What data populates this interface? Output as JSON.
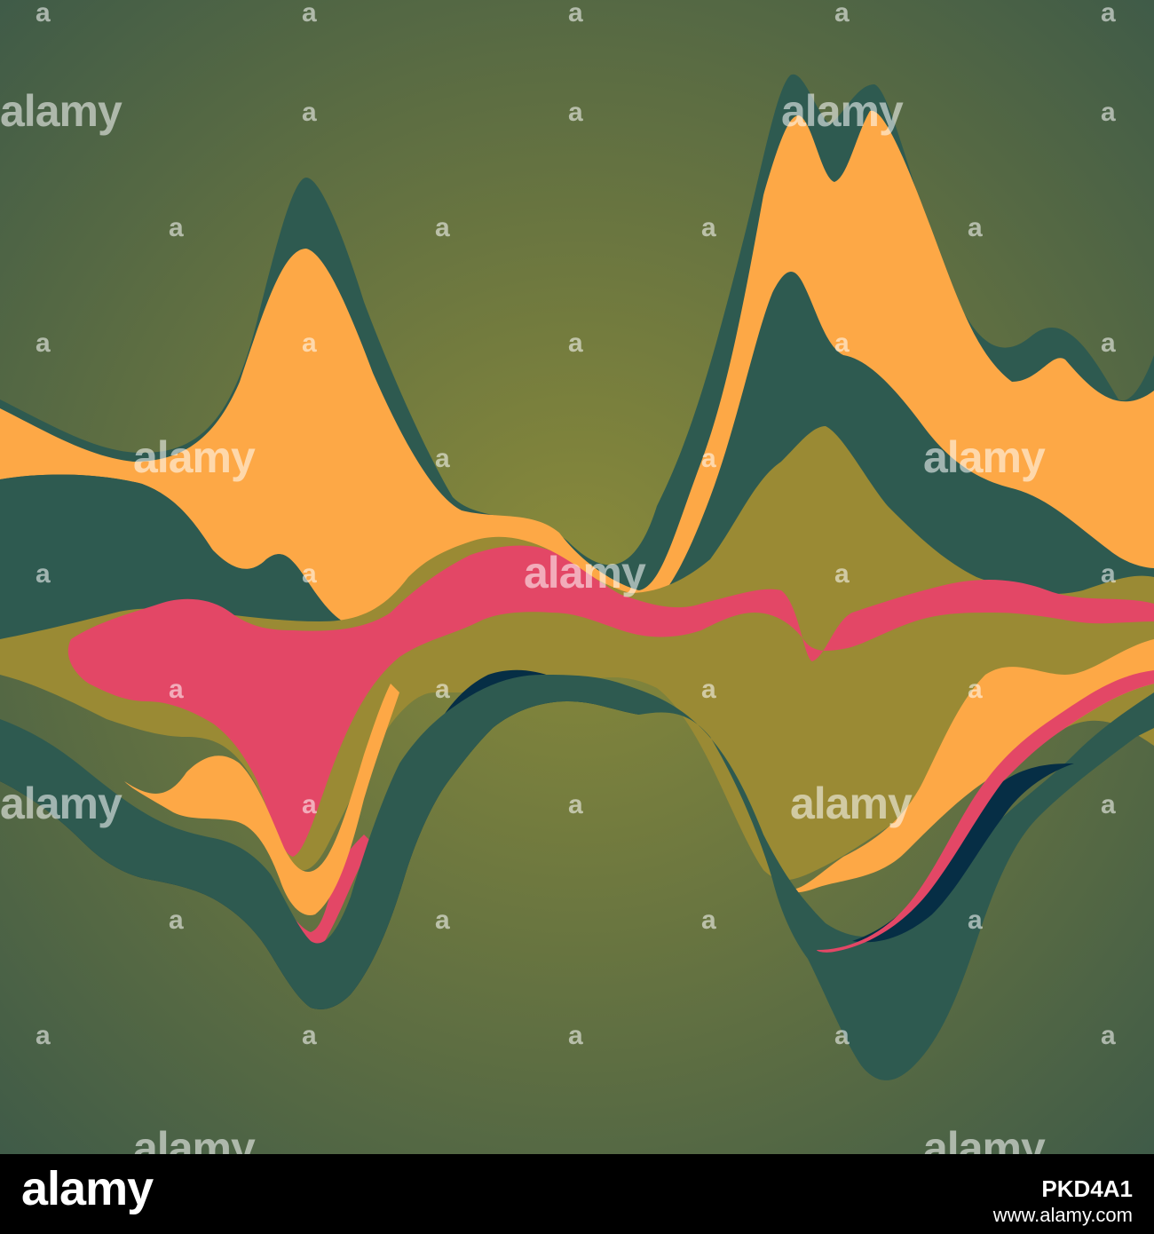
{
  "palette": {
    "background_center": "#8a8a3a",
    "background_edge": "#3e5a48",
    "dark_teal": "#2e5a50",
    "orange": "#fda846",
    "olive": "#9a8a34",
    "pink": "#e34766",
    "navy": "#062e45"
  },
  "watermark": {
    "word": "alamy",
    "mark": "a"
  },
  "footer": {
    "logo": "alamy",
    "image_id": "PKD4A1",
    "site": "www.alamy.com"
  }
}
